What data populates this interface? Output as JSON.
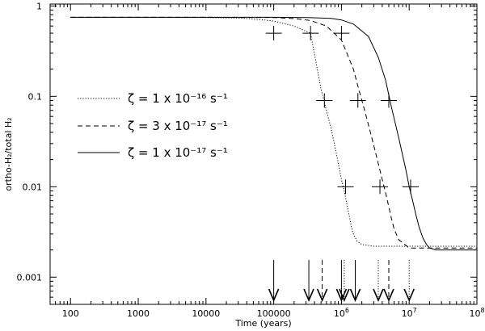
{
  "chart_data": {
    "type": "line",
    "title": "",
    "xlabel": "Time (years)",
    "ylabel": "ortho-H₂/total H₂",
    "x_scale": "log",
    "y_scale": "log",
    "xlim": [
      50,
      100000000
    ],
    "ylim": [
      0.0005,
      1.05
    ],
    "x_ticks": [
      {
        "value": 100,
        "label": "100"
      },
      {
        "value": 1000,
        "label": "1000"
      },
      {
        "value": 10000,
        "label": "10000"
      },
      {
        "value": 100000,
        "label": "100000"
      },
      {
        "value": 1000000,
        "label": "10",
        "exp": "6"
      },
      {
        "value": 10000000,
        "label": "10",
        "exp": "7"
      },
      {
        "value": 100000000,
        "label": "10",
        "exp": "8"
      }
    ],
    "y_ticks": [
      {
        "value": 0.001,
        "label": "0.001"
      },
      {
        "value": 0.01,
        "label": "0.01"
      },
      {
        "value": 0.1,
        "label": "0.1"
      },
      {
        "value": 1,
        "label": "1"
      }
    ],
    "legend_position": "center-left",
    "series": [
      {
        "name": "ζ = 1 x 10⁻¹⁶ s⁻¹",
        "style": "dotted",
        "x": [
          100,
          1000,
          10000,
          30000,
          60000,
          100000,
          200000,
          350000,
          500000,
          600000,
          700000,
          800000,
          900000,
          1000000,
          1100000,
          1200000,
          1300000,
          1400000,
          1500000,
          1700000,
          2000000,
          3000000,
          10000000,
          100000000
        ],
        "y": [
          0.75,
          0.75,
          0.745,
          0.735,
          0.71,
          0.68,
          0.6,
          0.5,
          0.12,
          0.07,
          0.045,
          0.028,
          0.018,
          0.012,
          0.009,
          0.0065,
          0.0048,
          0.0036,
          0.003,
          0.0025,
          0.0023,
          0.0022,
          0.0022,
          0.0022
        ]
      },
      {
        "name": "ζ = 3 x 10⁻¹⁷ s⁻¹",
        "style": "dashed",
        "x": [
          100,
          1000,
          10000,
          100000,
          200000,
          350000,
          600000,
          1000000,
          1500000,
          1800000,
          2200000,
          2800000,
          3500000,
          4000000,
          4500000,
          5000000,
          5500000,
          6000000,
          7000000,
          10000000,
          100000000
        ],
        "y": [
          0.75,
          0.75,
          0.75,
          0.745,
          0.725,
          0.69,
          0.6,
          0.42,
          0.2,
          0.12,
          0.07,
          0.035,
          0.018,
          0.012,
          0.0085,
          0.006,
          0.0044,
          0.0034,
          0.0026,
          0.0021,
          0.0021
        ]
      },
      {
        "name": "ζ = 1 x 10⁻¹⁷ s⁻¹",
        "style": "solid",
        "x": [
          100,
          1000,
          10000,
          100000,
          300000,
          700000,
          1000000,
          1500000,
          2500000,
          3500000,
          4500000,
          5500000,
          7000000,
          9000000,
          10000000,
          11000000,
          12500000,
          14000000,
          16000000,
          18000000,
          20000000,
          25000000,
          100000000
        ],
        "y": [
          0.75,
          0.75,
          0.75,
          0.75,
          0.745,
          0.73,
          0.7,
          0.63,
          0.46,
          0.27,
          0.15,
          0.075,
          0.035,
          0.015,
          0.01,
          0.0075,
          0.005,
          0.0036,
          0.0027,
          0.0023,
          0.0021,
          0.002,
          0.002
        ]
      }
    ],
    "markers": [
      {
        "x": 100000,
        "y": 0.5
      },
      {
        "x": 350000,
        "y": 0.5
      },
      {
        "x": 1000000,
        "y": 0.5
      },
      {
        "x": 560000,
        "y": 0.09
      },
      {
        "x": 1750000,
        "y": 0.09
      },
      {
        "x": 5000000,
        "y": 0.09
      },
      {
        "x": 1150000,
        "y": 0.01
      },
      {
        "x": 3700000,
        "y": 0.01
      },
      {
        "x": 10500000,
        "y": 0.01
      }
    ],
    "arrows": [
      {
        "x": 100000,
        "style": "solid"
      },
      {
        "x": 330000,
        "style": "solid"
      },
      {
        "x": 520000,
        "style": "dashed"
      },
      {
        "x": 1000000,
        "style": "solid"
      },
      {
        "x": 1100000,
        "style": "dotted"
      },
      {
        "x": 1600000,
        "style": "solid"
      },
      {
        "x": 3500000,
        "style": "dotted"
      },
      {
        "x": 5000000,
        "style": "dashed"
      },
      {
        "x": 10000000,
        "style": "dotted"
      }
    ]
  }
}
